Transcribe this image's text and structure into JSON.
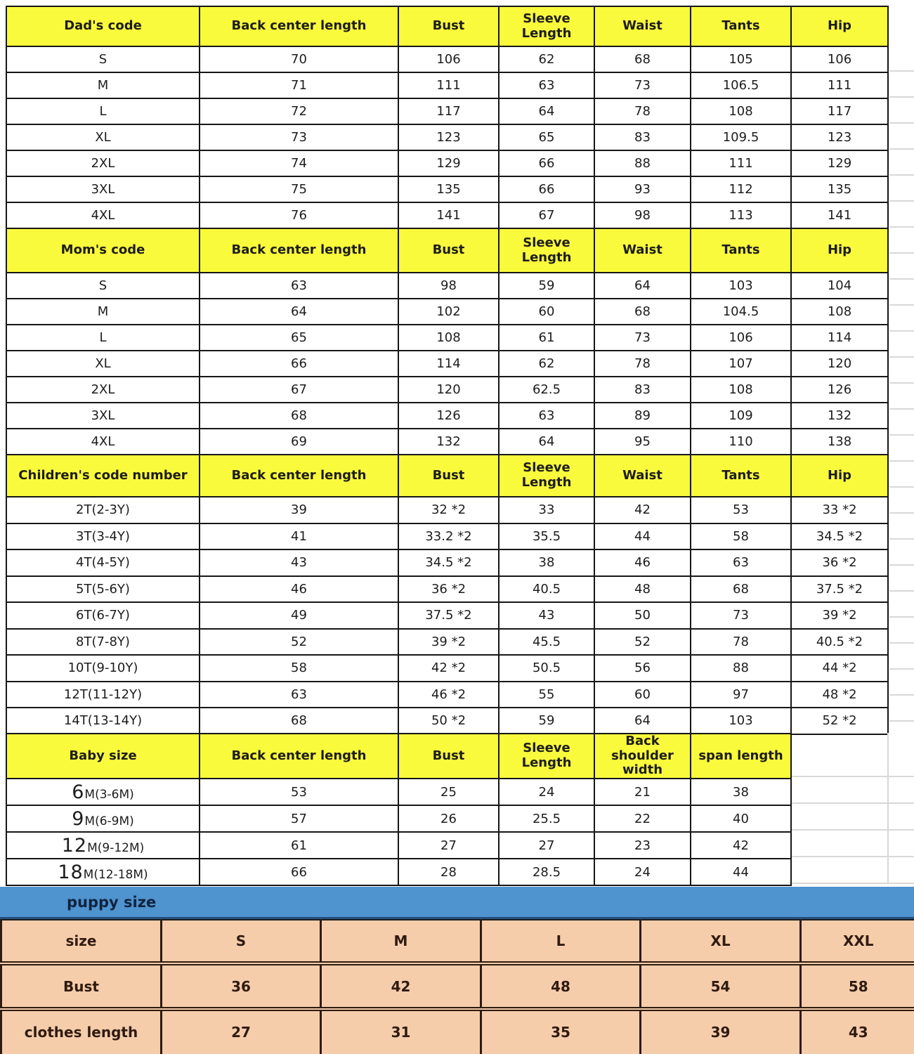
{
  "colors": {
    "header_bg": "#fafa3c",
    "border": "#161616",
    "text": "#1d1d1d",
    "child_blue": "#4a94d8",
    "child_navy": "#2a3a6e",
    "child_red": "#ee2a23",
    "puppy_bar_bg": "#4f93cf",
    "puppy_bar_text": "#10233d",
    "puppy_bg": "#f6cdab",
    "puppy_text": "#2f1b10",
    "grid_faint": "#d8d8d8"
  },
  "chart_data": [
    {
      "type": "table",
      "id": "dad",
      "columns": [
        "Dad's code",
        "Back center length",
        "Bust",
        "Sleeve\nLength",
        "Waist",
        "Tants",
        "Hip"
      ],
      "rows": [
        {
          "color": "black",
          "cells": [
            "S",
            "70",
            "106",
            "62",
            "68",
            "105",
            "106"
          ]
        },
        {
          "color": "black",
          "cells": [
            "M",
            "71",
            "111",
            "63",
            "73",
            "106.5",
            "111"
          ]
        },
        {
          "color": "black",
          "cells": [
            "L",
            "72",
            "117",
            "64",
            "78",
            "108",
            "117"
          ]
        },
        {
          "color": "black",
          "cells": [
            "XL",
            "73",
            "123",
            "65",
            "83",
            "109.5",
            "123"
          ]
        },
        {
          "color": "black",
          "cells": [
            "2XL",
            "74",
            "129",
            "66",
            "88",
            "111",
            "129"
          ]
        },
        {
          "color": "black",
          "cells": [
            "3XL",
            "75",
            "135",
            "66",
            "93",
            "112",
            "135"
          ]
        },
        {
          "color": "black",
          "cells": [
            "4XL",
            "76",
            "141",
            "67",
            "98",
            "113",
            "141"
          ]
        }
      ]
    },
    {
      "type": "table",
      "id": "mom",
      "columns": [
        "Mom's code",
        "Back center length",
        "Bust",
        "Sleeve\nLength",
        "Waist",
        "Tants",
        "Hip"
      ],
      "rows": [
        {
          "color": "black",
          "cells": [
            "S",
            "63",
            "98",
            "59",
            "64",
            "103",
            "104"
          ]
        },
        {
          "color": "black",
          "cells": [
            "M",
            "64",
            "102",
            "60",
            "68",
            "104.5",
            "108"
          ]
        },
        {
          "color": "black",
          "cells": [
            "L",
            "65",
            "108",
            "61",
            "73",
            "106",
            "114"
          ]
        },
        {
          "color": "black",
          "cells": [
            "XL",
            "66",
            "114",
            "62",
            "78",
            "107",
            "120"
          ]
        },
        {
          "color": "black",
          "cells": [
            "2XL",
            "67",
            "120",
            "62.5",
            "83",
            "108",
            "126"
          ]
        },
        {
          "color": "black",
          "cells": [
            "3XL",
            "68",
            "126",
            "63",
            "89",
            "109",
            "132"
          ]
        },
        {
          "color": "black",
          "cells": [
            "4XL",
            "69",
            "132",
            "64",
            "95",
            "110",
            "138"
          ]
        }
      ]
    },
    {
      "type": "table",
      "id": "children",
      "last_col_color": "black",
      "columns": [
        "Children's code number",
        "Back center length",
        "Bust",
        "Sleeve\nLength",
        "Waist",
        "Tants",
        "Hip"
      ],
      "rows": [
        {
          "color": "blue",
          "cells": [
            "2T(2-3Y)",
            "39",
            "32 *2",
            "33",
            "42",
            "53",
            "33 *2"
          ]
        },
        {
          "color": "blue",
          "cells": [
            "3T(3-4Y)",
            "41",
            "33.2 *2",
            "35.5",
            "44",
            "58",
            "34.5 *2"
          ]
        },
        {
          "color": "blue",
          "cells": [
            "4T(4-5Y)",
            "43",
            "34.5 *2",
            "38",
            "46",
            "63",
            "36 *2"
          ]
        },
        {
          "color": "blue",
          "cells": [
            "5T(5-6Y)",
            "46",
            "36 *2",
            "40.5",
            "48",
            "68",
            "37.5 *2"
          ]
        },
        {
          "color": "blue",
          "cells": [
            "6T(6-7Y)",
            "49",
            "37.5 *2",
            "43",
            "50",
            "73",
            "39 *2"
          ]
        },
        {
          "color": "navy",
          "cells": [
            "8T(7-8Y)",
            "52",
            "39 *2",
            "45.5",
            "52",
            "78",
            "40.5 *2"
          ]
        },
        {
          "color": "navy",
          "cells": [
            "10T(9-10Y)",
            "58",
            "42 *2",
            "50.5",
            "56",
            "88",
            "44 *2"
          ]
        },
        {
          "color": "red",
          "cells": [
            "12T(11-12Y)",
            "63",
            "46 *2",
            "55",
            "60",
            "97",
            "48 *2"
          ]
        },
        {
          "color": "red",
          "cells": [
            "14T(13-14Y)",
            "68",
            "50 *2",
            "59",
            "64",
            "103",
            "52 *2"
          ]
        }
      ]
    },
    {
      "type": "table",
      "id": "baby",
      "columns": [
        "Baby size",
        "Back center length",
        "Bust",
        "Sleeve\nLength",
        "Back\nshoulder width",
        "span length"
      ],
      "rows": [
        {
          "big": "6",
          "rest": "M(3-6M)",
          "cells": [
            "53",
            "25",
            "24",
            "21",
            "38"
          ]
        },
        {
          "big": "9",
          "rest": "M(6-9M)",
          "cells": [
            "57",
            "26",
            "25.5",
            "22",
            "40"
          ]
        },
        {
          "big": "12",
          "rest": "M(9-12M)",
          "cells": [
            "61",
            "27",
            "27",
            "23",
            "42"
          ]
        },
        {
          "big": "18",
          "rest": "M(12-18M)",
          "cells": [
            "66",
            "28",
            "28.5",
            "24",
            "44"
          ]
        }
      ]
    },
    {
      "type": "table",
      "id": "puppy",
      "title": "puppy size",
      "rows": [
        {
          "label": "size",
          "cells": [
            "S",
            "M",
            "L",
            "XL",
            "XXL"
          ]
        },
        {
          "label": "Bust",
          "cells": [
            "36",
            "42",
            "48",
            "54",
            "58"
          ]
        },
        {
          "label": "clothes length",
          "cells": [
            "27",
            "31",
            "35",
            "39",
            "43"
          ]
        }
      ]
    }
  ]
}
